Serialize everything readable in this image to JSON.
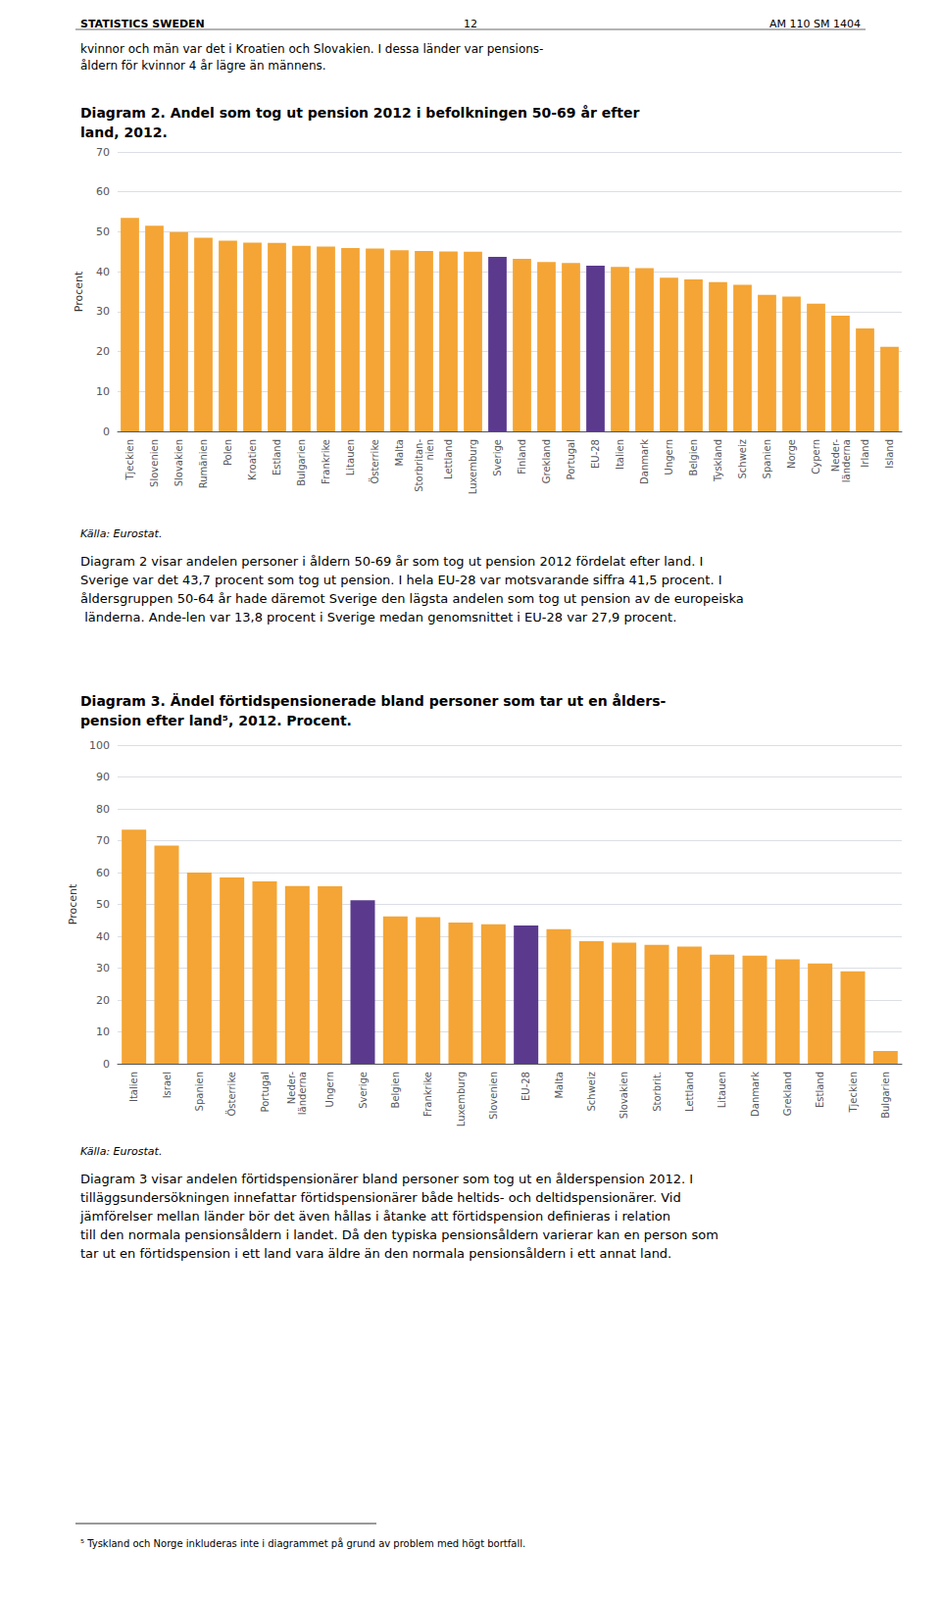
{
  "chart_data": [
    {
      "type": "bar",
      "title": "Diagram 2. Andel som tog ut pension 2012 i befolkningen 50-69 år efter\nland, 2012.",
      "ylabel": "Procent",
      "categories": [
        "Tjeckien",
        "Slovenien",
        "Slovakien",
        "Rumänien",
        "Polen",
        "Kroatien",
        "Estland",
        "Bulgarien",
        "Frankrike",
        "Litauen",
        "Österrike",
        "Malta",
        "Storbritan-\nnien",
        "Lettland",
        "Luxemburg",
        "Sverige",
        "Finland",
        "Grekland",
        "Portugal",
        "EU-28",
        "Italien",
        "Danmark",
        "Ungern",
        "Belgien",
        "Tyskland",
        "Schweiz",
        "Spanien",
        "Norge",
        "Cypern",
        "Neder-\nländerna",
        "Irland",
        "Island"
      ],
      "values": [
        53.5,
        51.5,
        49.9,
        48.5,
        47.8,
        47.3,
        47.2,
        46.5,
        46.3,
        45.9,
        45.8,
        45.4,
        45.2,
        45.1,
        45.0,
        43.7,
        43.2,
        42.4,
        42.2,
        41.5,
        41.2,
        40.9,
        38.5,
        38.1,
        37.4,
        36.7,
        34.2,
        33.8,
        32.0,
        29.0,
        25.8,
        21.2
      ],
      "colors": [
        "#F4A535",
        "#F4A535",
        "#F4A535",
        "#F4A535",
        "#F4A535",
        "#F4A535",
        "#F4A535",
        "#F4A535",
        "#F4A535",
        "#F4A535",
        "#F4A535",
        "#F4A535",
        "#F4A535",
        "#F4A535",
        "#F4A535",
        "#5B3A8E",
        "#F4A535",
        "#F4A535",
        "#F4A535",
        "#5B3A8E",
        "#F4A535",
        "#F4A535",
        "#F4A535",
        "#F4A535",
        "#F4A535",
        "#F4A535",
        "#F4A535",
        "#F4A535",
        "#F4A535",
        "#F4A535",
        "#F4A535",
        "#F4A535"
      ],
      "ylim": [
        0,
        70
      ],
      "yticks": [
        0,
        10,
        20,
        30,
        40,
        50,
        60,
        70
      ],
      "grid": true,
      "annotations": [
        "STATISTICS SWEDEN",
        "12",
        "AM 110 SM 1404",
        "kvinnor och män var det i Kroatien och Slovakien. I dessa länder var pensions-\nåldern för kvinnor 4 år lägre än männens.",
        "Källa: Eurostat.",
        "Diagram 2 visar andelen personer i åldern 50-69 år som tog ut pension 2012 fördelat efter land. I Sverige var det 43,7 procent som tog ut pension. I hela EU-28 var motsvarande siffra 41,5 procent. I åldersgruppen 50-64 år hade däremot Sverige den lägsta andelen som tog ut pension av de europeiska länderna. Ande-len var 13,8 procent i Sverige medan genomsnittet i EU-28 var 27,9 procent."
      ]
    },
    {
      "type": "bar",
      "title": "Diagram 3. Ändel förtidspensionerade bland personer som tar ut en ålders-\npension efter land⁵, 2012. Procent.",
      "ylabel": "Procent",
      "categories": [
        "Italien",
        "Israel",
        "Spanien",
        "Österrike",
        "Portugal",
        "Neder-\nländerna",
        "Ungern",
        "Sverige",
        "Belgien",
        "Frankrike",
        "Luxemburg",
        "Slovenien",
        "EU-28",
        "Malta",
        "Schweiz",
        "Slovakien",
        "Storbrit.",
        "Lettland",
        "Litauen",
        "Danmark",
        "Grekland",
        "Estland",
        "Tjeckien",
        "Bulgarien"
      ],
      "values": [
        73.5,
        68.5,
        60.0,
        58.5,
        57.2,
        55.8,
        55.7,
        51.3,
        46.2,
        46.0,
        44.3,
        43.8,
        43.4,
        42.2,
        38.5,
        38.0,
        37.3,
        36.8,
        34.2,
        33.9,
        32.8,
        31.5,
        29.0,
        4.0
      ],
      "colors": [
        "#F4A535",
        "#F4A535",
        "#F4A535",
        "#F4A535",
        "#F4A535",
        "#F4A535",
        "#F4A535",
        "#5B3A8E",
        "#F4A535",
        "#F4A535",
        "#F4A535",
        "#F4A535",
        "#5B3A8E",
        "#F4A535",
        "#F4A535",
        "#F4A535",
        "#F4A535",
        "#F4A535",
        "#F4A535",
        "#F4A535",
        "#F4A535",
        "#F4A535",
        "#F4A535",
        "#F4A535"
      ],
      "ylim": [
        0,
        100
      ],
      "yticks": [
        0,
        10,
        20,
        30,
        40,
        50,
        60,
        70,
        80,
        90,
        100
      ],
      "grid": true,
      "annotations": [
        "Källa: Eurostat.",
        "Diagram 3 visar andelen förtidspensionärer bland personer som tog ut en ålderspension 2012. I tilläggsundersökningen innefattar förtidspensionärer både heltids- och deltidspensionärer. Vid jämförelser mellan länder bör det även hållas i åtanke att förtidspension definieras i relation till den normala pensionsåldern i landet. Då den typiska pensionsåldern varierar kan en person som tar ut en förtidspension i ett land vara äldre än den normala pensionsåldern i ett annat land.",
        "⁵ Tyskland och Norge inkluderas inte i diagrammet på grund av problem med högt bortfall."
      ]
    }
  ]
}
